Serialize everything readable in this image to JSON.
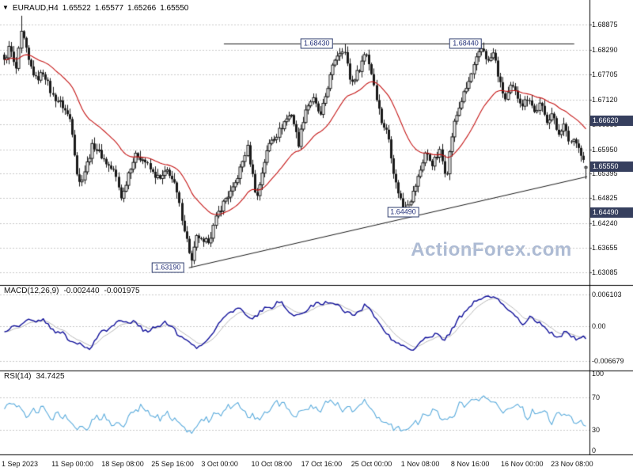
{
  "header": {
    "marker_icon": "▼",
    "symbol_period": "EURAUD,H4",
    "open": "1.65522",
    "high": "1.65577",
    "low": "1.65266",
    "close": "1.65550"
  },
  "watermark": "ActionForex.com",
  "indicators": {
    "macd": {
      "label": "MACD(12,26,9)",
      "main_value": "-0.002440",
      "signal_value": "-0.001975"
    },
    "rsi": {
      "label": "RSI(14)",
      "value": "34.7425"
    }
  },
  "colors": {
    "grid": "#c9c9c9",
    "candle": "#1a1a1a",
    "ma_line": "#c41414",
    "macd_line": "#10109a",
    "macd_signal": "#b8b8b8",
    "rsi_line": "#5aabdc",
    "separator": "#000000",
    "annotation_line": "#1a1a1a",
    "axis_tag_bg": "#363f5e",
    "label_box_border": "#2e3c6e",
    "label_box_text": "#23307a",
    "watermark": "#adbbd4",
    "axis_text": "#141414"
  },
  "time_axis": {
    "labels": [
      "1 Sep 2023",
      "11 Sep 00:00",
      "18 Sep 08:00",
      "25 Sep 16:00",
      "3 Oct 00:00",
      "10 Oct 08:00",
      "17 Oct 16:00",
      "25 Oct 00:00",
      "1 Nov 08:00",
      "8 Nov 16:00",
      "16 Nov 00:00",
      "23 Nov 08:00"
    ]
  },
  "chart_data": [
    {
      "type": "candlestick",
      "name": "EURAUD H4 price",
      "bars": 240,
      "ylim": [
        1.62825,
        1.693
      ],
      "x_range": [
        "1 Sep 2023",
        "24 Nov 2023"
      ],
      "axis_ticks": [
        "1.68875",
        "1.68290",
        "1.67705",
        "1.67120",
        "1.66535",
        "1.65950",
        "1.65395",
        "1.64825",
        "1.64240",
        "1.63655",
        "1.63085"
      ],
      "ma_period": 28,
      "price_path": [
        [
          0.0,
          1.68
        ],
        [
          0.01,
          1.6838
        ],
        [
          0.02,
          1.6775
        ],
        [
          0.03,
          1.6872
        ],
        [
          0.042,
          1.68
        ],
        [
          0.055,
          1.6758
        ],
        [
          0.068,
          1.6778
        ],
        [
          0.082,
          1.6722
        ],
        [
          0.098,
          1.6702
        ],
        [
          0.115,
          1.6662
        ],
        [
          0.128,
          1.6512
        ],
        [
          0.14,
          1.6552
        ],
        [
          0.152,
          1.6608
        ],
        [
          0.165,
          1.6585
        ],
        [
          0.178,
          1.656
        ],
        [
          0.19,
          1.6542
        ],
        [
          0.202,
          1.648
        ],
        [
          0.215,
          1.655
        ],
        [
          0.228,
          1.6585
        ],
        [
          0.242,
          1.6568
        ],
        [
          0.255,
          1.654
        ],
        [
          0.268,
          1.6525
        ],
        [
          0.282,
          1.6548
        ],
        [
          0.295,
          1.6505
        ],
        [
          0.308,
          1.642
        ],
        [
          0.322,
          1.6332
        ],
        [
          0.332,
          1.6398
        ],
        [
          0.342,
          1.6372
        ],
        [
          0.354,
          1.6388
        ],
        [
          0.366,
          1.6442
        ],
        [
          0.38,
          1.648
        ],
        [
          0.394,
          1.6502
        ],
        [
          0.408,
          1.6558
        ],
        [
          0.418,
          1.6602
        ],
        [
          0.428,
          1.6525
        ],
        [
          0.434,
          1.6478
        ],
        [
          0.446,
          1.656
        ],
        [
          0.458,
          1.6618
        ],
        [
          0.47,
          1.6632
        ],
        [
          0.482,
          1.6662
        ],
        [
          0.494,
          1.668
        ],
        [
          0.506,
          1.6608
        ],
        [
          0.518,
          1.6688
        ],
        [
          0.53,
          1.6715
        ],
        [
          0.544,
          1.6672
        ],
        [
          0.558,
          1.6752
        ],
        [
          0.57,
          1.6812
        ],
        [
          0.584,
          1.6835
        ],
        [
          0.596,
          1.6748
        ],
        [
          0.61,
          1.6782
        ],
        [
          0.622,
          1.6828
        ],
        [
          0.634,
          1.6762
        ],
        [
          0.648,
          1.6662
        ],
        [
          0.66,
          1.663
        ],
        [
          0.672,
          1.6522
        ],
        [
          0.687,
          1.6458
        ],
        [
          0.7,
          1.6482
        ],
        [
          0.712,
          1.6532
        ],
        [
          0.724,
          1.6588
        ],
        [
          0.737,
          1.6562
        ],
        [
          0.749,
          1.659
        ],
        [
          0.76,
          1.6532
        ],
        [
          0.772,
          1.6648
        ],
        [
          0.785,
          1.6705
        ],
        [
          0.798,
          1.6748
        ],
        [
          0.81,
          1.68
        ],
        [
          0.822,
          1.6836
        ],
        [
          0.832,
          1.6798
        ],
        [
          0.842,
          1.6822
        ],
        [
          0.852,
          1.6752
        ],
        [
          0.862,
          1.6712
        ],
        [
          0.872,
          1.6744
        ],
        [
          0.882,
          1.672
        ],
        [
          0.892,
          1.67
        ],
        [
          0.902,
          1.6722
        ],
        [
          0.912,
          1.6682
        ],
        [
          0.922,
          1.6702
        ],
        [
          0.932,
          1.6662
        ],
        [
          0.942,
          1.668
        ],
        [
          0.952,
          1.6632
        ],
        [
          0.962,
          1.6652
        ],
        [
          0.972,
          1.6612
        ],
        [
          0.982,
          1.6622
        ],
        [
          0.992,
          1.6582
        ],
        [
          1.0,
          1.6555
        ]
      ],
      "last_candle": {
        "open": 1.65522,
        "high": 1.65577,
        "low": 1.65266,
        "close": 1.6555
      },
      "forced_points": {
        "spike_high": {
          "x": 0.03,
          "price": 1.6908
        },
        "major_low": {
          "x": 0.322,
          "price": 1.6319
        },
        "peak1": {
          "x": 0.584,
          "price": 1.6843
        },
        "peak2": {
          "x": 0.822,
          "price": 1.6844
        }
      },
      "annotations": {
        "resistance_line": {
          "price": 1.6843,
          "x_from": 0.378,
          "x_to": 0.978,
          "labels": [
            {
              "text": "1.68430",
              "x": 0.537
            },
            {
              "text": "1.68440",
              "x": 0.792
            }
          ]
        },
        "trend_line": {
          "x1": 0.318,
          "price1": 1.6319,
          "x2": 1.0,
          "price2": 1.6532
        },
        "floating_labels": [
          {
            "text": "1.63190",
            "x": 0.282,
            "price": 1.6319
          },
          {
            "text": "1.64490",
            "x": 0.685,
            "price": 1.6449
          }
        ],
        "axis_tags": [
          "1.66620",
          "1.65550",
          "1.64490"
        ]
      }
    },
    {
      "type": "line",
      "name": "MACD(12,26,9)",
      "ylim": [
        -0.00824,
        0.00763
      ],
      "axis_ticks": [
        "0.006103",
        "0.00",
        "-0.006679"
      ],
      "signal_period": 7,
      "last_values": {
        "main": -0.00244,
        "signal": -0.001975
      },
      "path": [
        [
          0.0,
          -0.0012
        ],
        [
          0.03,
          0.0008
        ],
        [
          0.06,
          0.0015
        ],
        [
          0.09,
          -0.001
        ],
        [
          0.12,
          -0.003
        ],
        [
          0.145,
          -0.0044
        ],
        [
          0.17,
          -0.001
        ],
        [
          0.2,
          0.0012
        ],
        [
          0.225,
          0.0006
        ],
        [
          0.25,
          -0.0012
        ],
        [
          0.275,
          0.001
        ],
        [
          0.3,
          -0.0015
        ],
        [
          0.325,
          -0.004
        ],
        [
          0.35,
          -0.0028
        ],
        [
          0.375,
          0.0015
        ],
        [
          0.4,
          0.0038
        ],
        [
          0.425,
          0.0012
        ],
        [
          0.45,
          0.0035
        ],
        [
          0.475,
          0.0045
        ],
        [
          0.5,
          0.0015
        ],
        [
          0.525,
          0.0035
        ],
        [
          0.55,
          0.0048
        ],
        [
          0.575,
          0.004
        ],
        [
          0.6,
          0.0018
        ],
        [
          0.62,
          0.0042
        ],
        [
          0.64,
          0.0015
        ],
        [
          0.66,
          -0.002
        ],
        [
          0.68,
          -0.0035
        ],
        [
          0.7,
          -0.0044
        ],
        [
          0.72,
          -0.003
        ],
        [
          0.74,
          -0.0012
        ],
        [
          0.755,
          -0.0028
        ],
        [
          0.77,
          -0.0005
        ],
        [
          0.79,
          0.0025
        ],
        [
          0.81,
          0.0048
        ],
        [
          0.83,
          0.006
        ],
        [
          0.85,
          0.0052
        ],
        [
          0.87,
          0.003
        ],
        [
          0.89,
          0.0005
        ],
        [
          0.905,
          0.0018
        ],
        [
          0.92,
          0.0008
        ],
        [
          0.935,
          -0.0012
        ],
        [
          0.95,
          -0.0018
        ],
        [
          0.965,
          -0.0015
        ],
        [
          0.98,
          -0.002
        ],
        [
          1.0,
          -0.00244
        ]
      ]
    },
    {
      "type": "line",
      "name": "RSI(14)",
      "ylim": [
        0,
        100
      ],
      "axis_ticks": [
        "100",
        "70",
        "30",
        "0"
      ],
      "level_lines": [
        70,
        30
      ],
      "last_value": 34.7425,
      "path": [
        [
          0.0,
          55
        ],
        [
          0.02,
          63
        ],
        [
          0.04,
          48
        ],
        [
          0.06,
          58
        ],
        [
          0.08,
          45
        ],
        [
          0.1,
          50
        ],
        [
          0.12,
          36
        ],
        [
          0.14,
          30
        ],
        [
          0.16,
          48
        ],
        [
          0.18,
          42
        ],
        [
          0.2,
          35
        ],
        [
          0.22,
          52
        ],
        [
          0.24,
          58
        ],
        [
          0.26,
          45
        ],
        [
          0.28,
          50
        ],
        [
          0.3,
          38
        ],
        [
          0.32,
          26
        ],
        [
          0.34,
          40
        ],
        [
          0.36,
          48
        ],
        [
          0.38,
          56
        ],
        [
          0.4,
          62
        ],
        [
          0.42,
          48
        ],
        [
          0.44,
          42
        ],
        [
          0.46,
          58
        ],
        [
          0.48,
          64
        ],
        [
          0.5,
          48
        ],
        [
          0.52,
          60
        ],
        [
          0.54,
          55
        ],
        [
          0.56,
          68
        ],
        [
          0.58,
          58
        ],
        [
          0.6,
          52
        ],
        [
          0.62,
          65
        ],
        [
          0.64,
          45
        ],
        [
          0.66,
          38
        ],
        [
          0.68,
          28
        ],
        [
          0.7,
          35
        ],
        [
          0.72,
          48
        ],
        [
          0.74,
          55
        ],
        [
          0.76,
          42
        ],
        [
          0.78,
          58
        ],
        [
          0.8,
          65
        ],
        [
          0.82,
          72
        ],
        [
          0.84,
          62
        ],
        [
          0.86,
          55
        ],
        [
          0.88,
          62
        ],
        [
          0.9,
          48
        ],
        [
          0.92,
          55
        ],
        [
          0.94,
          42
        ],
        [
          0.96,
          50
        ],
        [
          0.98,
          40
        ],
        [
          1.0,
          34.74
        ]
      ]
    }
  ]
}
